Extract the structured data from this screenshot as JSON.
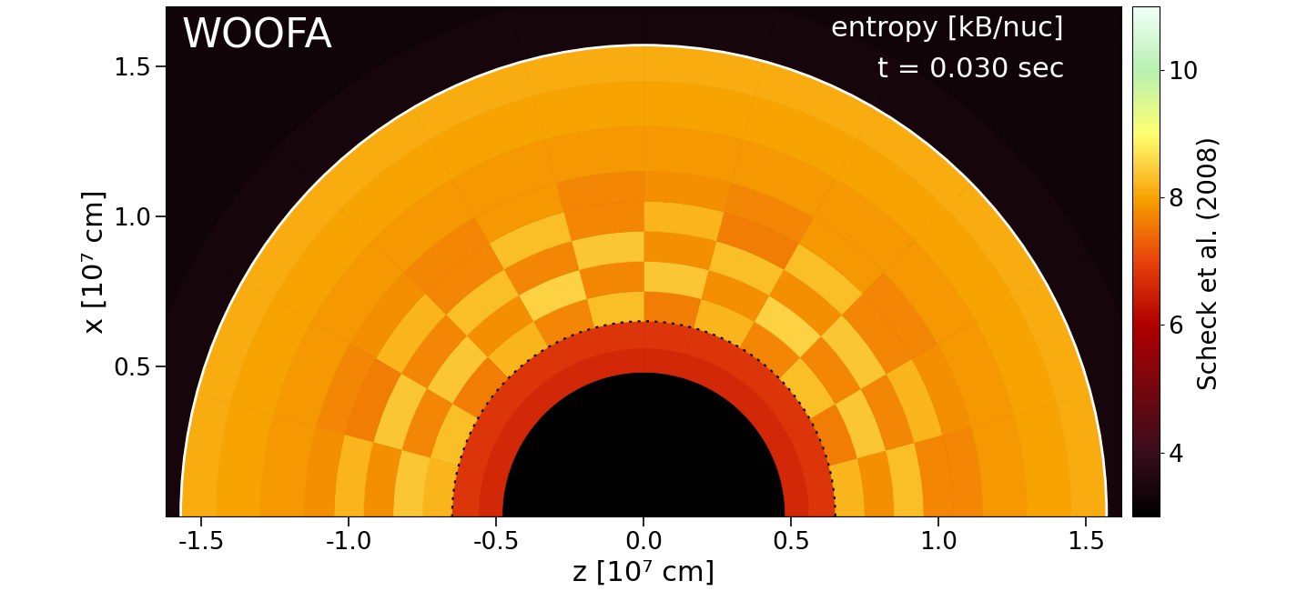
{
  "chart_data": {
    "type": "heatmap",
    "title": "WOOFA",
    "annotations": [
      "entropy [kB/nuc]",
      "t = 0.030 sec"
    ],
    "credit": "Scheck et al. (2008)",
    "x_label": "z [10⁷ cm]",
    "y_label": "x [10⁷ cm]",
    "xlim": [
      -1.62,
      1.62
    ],
    "ylim": [
      0,
      1.7
    ],
    "xticks": [
      -1.5,
      -1.0,
      -0.5,
      0.0,
      0.5,
      1.0,
      1.5
    ],
    "yticks": [
      0.5,
      1.0,
      1.5
    ],
    "radius_edges": [
      0,
      0.48,
      0.56,
      0.65,
      0.75,
      0.85,
      0.95,
      1.05,
      1.15,
      1.3,
      1.45,
      1.57,
      1.75,
      2.4
    ],
    "angle_edges": [
      0,
      15,
      30,
      45,
      60,
      75,
      90,
      105,
      120,
      135,
      150,
      165,
      180
    ],
    "cells": [
      [
        3.0,
        3.0,
        3.0,
        3.0,
        3.0,
        3.0,
        3.0,
        3.0,
        3.0,
        3.0,
        3.0,
        3.0
      ],
      [
        6.6,
        6.6,
        6.6,
        6.6,
        6.6,
        6.6,
        6.6,
        6.6,
        6.6,
        6.6,
        6.6,
        6.6
      ],
      [
        6.8,
        6.8,
        6.8,
        6.8,
        6.8,
        6.8,
        6.8,
        6.8,
        6.8,
        6.8,
        6.8,
        6.8
      ],
      [
        8.2,
        7.6,
        8.3,
        7.7,
        8.2,
        7.6,
        8.3,
        7.7,
        8.2,
        7.6,
        8.3,
        8.2
      ],
      [
        7.8,
        8.4,
        7.7,
        8.5,
        7.8,
        8.4,
        7.7,
        8.5,
        7.8,
        8.4,
        7.7,
        8.4
      ],
      [
        8.3,
        7.7,
        8.4,
        7.8,
        8.3,
        7.8,
        8.4,
        7.7,
        8.3,
        7.7,
        8.4,
        7.8
      ],
      [
        7.7,
        8.2,
        7.7,
        8.3,
        7.6,
        8.2,
        7.7,
        8.3,
        7.7,
        8.2,
        7.6,
        8.2
      ],
      [
        7.7,
        7.8,
        7.7,
        7.9,
        7.7,
        7.8,
        7.7,
        7.9,
        7.7,
        7.8,
        7.7,
        7.8
      ],
      [
        7.9,
        7.9,
        7.9,
        7.9,
        7.9,
        7.9,
        7.9,
        7.9,
        7.9,
        7.9,
        7.9,
        7.9
      ],
      [
        8.0,
        8.0,
        8.0,
        8.0,
        8.0,
        8.0,
        8.0,
        8.0,
        8.0,
        8.0,
        8.0,
        8.0
      ],
      [
        8.1,
        8.1,
        8.1,
        8.1,
        8.1,
        8.1,
        8.1,
        8.1,
        8.1,
        8.1,
        8.1,
        8.1
      ],
      [
        3.4,
        3.4,
        3.4,
        3.4,
        3.4,
        3.4,
        3.4,
        3.4,
        3.4,
        3.4,
        3.4,
        3.4
      ],
      [
        3.3,
        3.3,
        3.3,
        3.3,
        3.3,
        3.3,
        3.3,
        3.3,
        3.3,
        3.3,
        3.3,
        3.3
      ]
    ],
    "shock_radius": 1.57,
    "gain_radius": 0.65,
    "colorbar_range": [
      3,
      11
    ],
    "colorbar_ticks": [
      4,
      6,
      8,
      10
    ]
  }
}
